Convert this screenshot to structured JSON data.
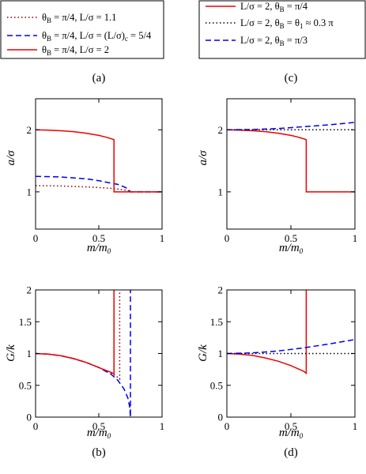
{
  "chart_data": [
    {
      "panel": "a",
      "type": "line",
      "xlabel": "m/m0",
      "ylabel": "a/σ",
      "xlim": [
        0,
        1
      ],
      "ylim": [
        0.4,
        2.5
      ],
      "xticks": [
        "0",
        "0.5",
        "1"
      ],
      "yticks": [
        "1",
        "2"
      ],
      "series": [
        {
          "name": "θB = π/4, L/σ = 1.1",
          "color": "#8b0000",
          "style": "dotted",
          "x": [
            0,
            0.2,
            0.4,
            0.5,
            0.6,
            0.65,
            0.7,
            0.73,
            0.745,
            0.75,
            0.8,
            0.9,
            1.0
          ],
          "y": [
            1.1,
            1.095,
            1.08,
            1.07,
            1.055,
            1.045,
            1.03,
            1.02,
            1.01,
            1.0,
            1.0,
            1.0,
            1.0
          ]
        },
        {
          "name": "θB = π/4, L/σ = (L/σ)c = 5/4",
          "color": "#0000ee",
          "style": "dashed",
          "x": [
            0,
            0.2,
            0.4,
            0.5,
            0.6,
            0.65,
            0.7,
            0.73,
            0.75,
            0.8,
            0.9,
            1.0
          ],
          "y": [
            1.25,
            1.24,
            1.21,
            1.18,
            1.14,
            1.12,
            1.08,
            1.05,
            1.0,
            1.0,
            1.0,
            1.0
          ]
        },
        {
          "name": "θB = π/4, L/σ = 2",
          "color": "#ee0000",
          "style": "solid",
          "x": [
            0,
            0.1,
            0.2,
            0.3,
            0.4,
            0.5,
            0.55,
            0.6,
            0.62,
            0.62,
            0.8,
            1.0
          ],
          "y": [
            2.0,
            1.995,
            1.985,
            1.97,
            1.945,
            1.91,
            1.885,
            1.855,
            1.84,
            1.0,
            1.0,
            1.0
          ]
        }
      ]
    },
    {
      "panel": "b",
      "type": "line",
      "xlabel": "m/m0",
      "ylabel": "G/k",
      "xlim": [
        0,
        1
      ],
      "ylim": [
        0,
        2
      ],
      "xticks": [
        "0",
        "0.5",
        "1"
      ],
      "yticks": [
        "0",
        "0.5",
        "1",
        "1.5",
        "2"
      ],
      "series": [
        {
          "color": "#8b0000",
          "style": "dotted",
          "x": [
            0,
            0.1,
            0.2,
            0.3,
            0.4,
            0.5,
            0.6,
            0.64,
            0.665,
            0.665
          ],
          "y": [
            1.0,
            0.99,
            0.965,
            0.92,
            0.86,
            0.78,
            0.69,
            0.64,
            0.6,
            2.0
          ]
        },
        {
          "color": "#0000ee",
          "style": "dashed",
          "x": [
            0,
            0.1,
            0.2,
            0.3,
            0.4,
            0.5,
            0.6,
            0.65,
            0.7,
            0.73,
            0.745,
            0.75,
            0.75
          ],
          "y": [
            1.0,
            0.99,
            0.965,
            0.92,
            0.86,
            0.78,
            0.67,
            0.58,
            0.44,
            0.3,
            0.15,
            0.0,
            2.0
          ]
        },
        {
          "color": "#ee0000",
          "style": "solid",
          "x": [
            0,
            0.1,
            0.2,
            0.3,
            0.4,
            0.5,
            0.6,
            0.62,
            0.62
          ],
          "y": [
            1.0,
            0.99,
            0.965,
            0.92,
            0.86,
            0.78,
            0.7,
            0.68,
            2.0
          ]
        }
      ]
    },
    {
      "panel": "c",
      "type": "line",
      "xlabel": "m/m0",
      "ylabel": "a/σ",
      "xlim": [
        0,
        1
      ],
      "ylim": [
        0.4,
        2.5
      ],
      "xticks": [
        "0",
        "0.5",
        "1"
      ],
      "yticks": [
        "1",
        "2"
      ],
      "series": [
        {
          "name": "L/σ = 2, θB = π/4",
          "color": "#ee0000",
          "style": "solid",
          "x": [
            0,
            0.1,
            0.2,
            0.3,
            0.4,
            0.5,
            0.55,
            0.6,
            0.62,
            0.62,
            0.8,
            1.0
          ],
          "y": [
            2.0,
            1.995,
            1.985,
            1.97,
            1.945,
            1.91,
            1.885,
            1.855,
            1.84,
            1.0,
            1.0,
            1.0
          ]
        },
        {
          "name": "L/σ = 2, θB = θ1 ≈ 0.3 π",
          "color": "#000000",
          "style": "dotted",
          "x": [
            0,
            1.0
          ],
          "y": [
            2.0,
            2.0
          ]
        },
        {
          "name": "L/σ = 2, θB = π/3",
          "color": "#0000ee",
          "style": "dashed",
          "x": [
            0,
            0.2,
            0.4,
            0.6,
            0.8,
            1.0
          ],
          "y": [
            2.0,
            2.005,
            2.02,
            2.05,
            2.08,
            2.12
          ]
        }
      ]
    },
    {
      "panel": "d",
      "type": "line",
      "xlabel": "m/m0",
      "ylabel": "G/k",
      "xlim": [
        0,
        1
      ],
      "ylim": [
        0,
        2
      ],
      "xticks": [
        "0",
        "0.5",
        "1"
      ],
      "yticks": [
        "0",
        "0.5",
        "1",
        "1.5",
        "2"
      ],
      "series": [
        {
          "color": "#ee0000",
          "style": "solid",
          "x": [
            0,
            0.1,
            0.2,
            0.3,
            0.4,
            0.5,
            0.6,
            0.62,
            0.62
          ],
          "y": [
            1.0,
            0.99,
            0.97,
            0.93,
            0.88,
            0.81,
            0.72,
            0.69,
            2.0
          ]
        },
        {
          "color": "#000000",
          "style": "dotted",
          "x": [
            0,
            1.0
          ],
          "y": [
            1.0,
            1.0
          ]
        },
        {
          "color": "#0000ee",
          "style": "dashed",
          "x": [
            0,
            0.2,
            0.4,
            0.6,
            0.8,
            1.0
          ],
          "y": [
            1.0,
            1.01,
            1.04,
            1.09,
            1.15,
            1.22
          ]
        }
      ]
    }
  ],
  "panel_labels": [
    "(a)",
    "(b)",
    "(c)",
    "(d)"
  ]
}
